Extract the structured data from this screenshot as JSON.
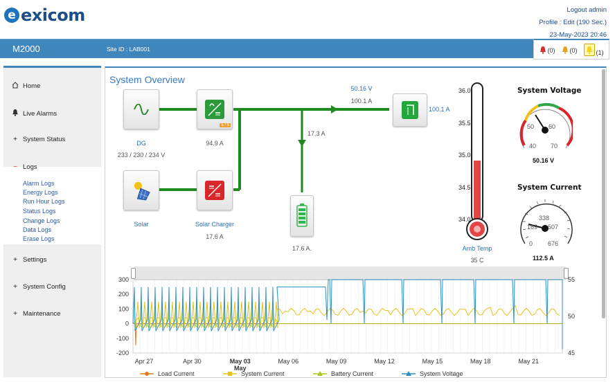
{
  "brand": {
    "name": "exicom",
    "mark": "e"
  },
  "user": {
    "logout": "Logout admin",
    "profile": "Profile : Edit (190 Sec.)",
    "datetime": "23-May-2023 20:46"
  },
  "bar": {
    "product": "M2000",
    "site": "Site ID : LAB001"
  },
  "alarms": [
    {
      "count": "(0)",
      "color": "#d62d2d"
    },
    {
      "count": "(0)",
      "color": "#e8a020"
    },
    {
      "count": "(1)",
      "color": "#f2d21a"
    }
  ],
  "sidebar": {
    "items": [
      {
        "label": "Home",
        "icon": "home-icon"
      },
      {
        "label": "Live Alarms",
        "icon": "bell-icon"
      },
      {
        "label": "System Status",
        "icon": "plus-icon"
      },
      {
        "label": "Logs",
        "icon": "minus-icon"
      },
      {
        "label": "Settings",
        "icon": "plus-icon"
      },
      {
        "label": "System Config",
        "icon": "plus-icon"
      },
      {
        "label": "Maintenance",
        "icon": "plus-icon"
      }
    ],
    "logs": [
      "Alarm Logs",
      "Energy Logs",
      "Run Hour Logs",
      "Status Logs",
      "Change Logs",
      "Data Logs",
      "Erase Logs"
    ]
  },
  "overview": {
    "title": "System Overview",
    "dg": {
      "label": "DG",
      "value": "233 / 230 / 234 V"
    },
    "rectifier": {
      "value": "94.9 A",
      "badge": "5 / 5"
    },
    "solar": {
      "label": "Solar"
    },
    "charger": {
      "label": "Solar Charger",
      "value": "17.6 A"
    },
    "bus": {
      "voltage": "50.16 V",
      "current": "100.1 A"
    },
    "load": {
      "value": "100.1 A"
    },
    "battery_flow": "17.3 A",
    "battery": {
      "value": "17.6 A."
    },
    "temp": {
      "label": "Amb Temp",
      "value": "35 C",
      "scale": [
        "36.0",
        "35.5",
        "35.0",
        "34.5",
        "34.0"
      ],
      "level": 35
    },
    "voltage_gauge": {
      "title": "System Voltage",
      "value": "50.16 V",
      "ticks": [
        "40",
        "50",
        "60",
        "70"
      ]
    },
    "current_gauge": {
      "title": "System Current",
      "value": "112.5 A",
      "ticks": [
        "0",
        "169",
        "338",
        "507",
        "676"
      ]
    }
  },
  "chart_data": {
    "type": "line",
    "x_ticks": [
      "Apr 27",
      "Apr 30",
      "May 03",
      "May 06",
      "May 09",
      "May 12",
      "May 15",
      "May 18",
      "May 21"
    ],
    "x_tick_second_line": [
      "",
      "",
      "May",
      "",
      "",
      "",
      "",
      "",
      ""
    ],
    "y_left_ticks": [
      "300",
      "200",
      "100",
      "0",
      "-100",
      "-200"
    ],
    "y_right_ticks": [
      "55",
      "50",
      "45"
    ],
    "ylim_left": [
      -200,
      300
    ],
    "ylim_right": [
      45,
      55
    ],
    "series": [
      {
        "name": "Load Current",
        "color": "#e37b22"
      },
      {
        "name": "System Current",
        "color": "#e6c21a"
      },
      {
        "name": "Battery Current",
        "color": "#a6c620"
      },
      {
        "name": "System Voltage",
        "color": "#2b8fc2"
      }
    ]
  }
}
